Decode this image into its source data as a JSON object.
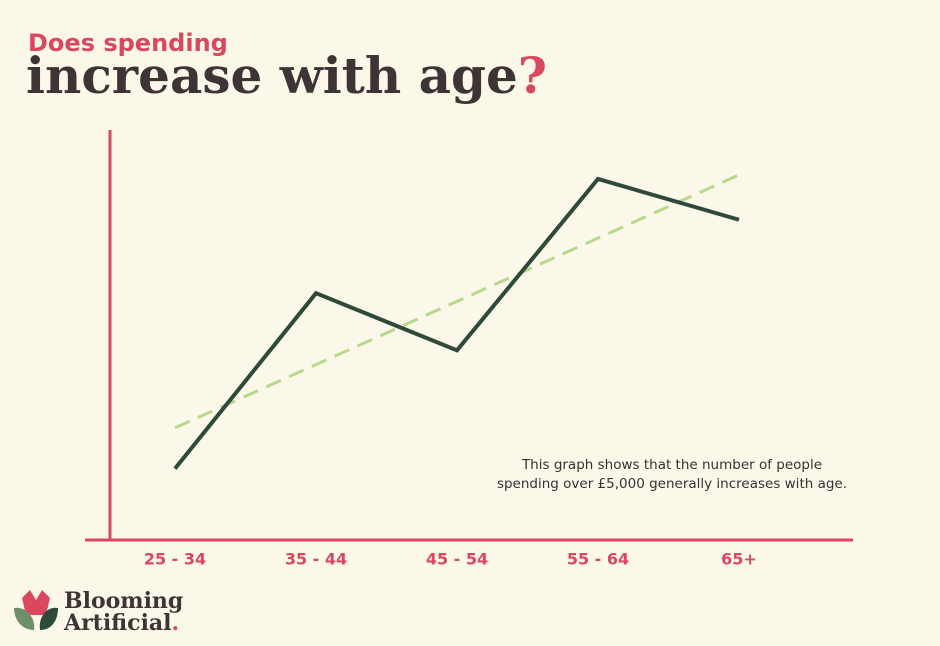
{
  "chart_data": {
    "type": "line",
    "title": "Does spending",
    "headline": [
      "increase with age",
      "?"
    ],
    "annotation": [
      "This graph shows that the number of people",
      "spending over £5,000 generally increases with age."
    ],
    "categories": [
      "25 - 34",
      "35 - 44",
      "45 - 54",
      "55 - 64",
      "65+"
    ],
    "series": [
      {
        "color": "#2f4a3b",
        "values": [
          17,
          60,
          46,
          88,
          78
        ]
      },
      {
        "color": "#b8d88e",
        "values": [
          27,
          42.5,
          58,
          73.5,
          89
        ],
        "dashed": true
      }
    ],
    "ylim": [
      0,
      100
    ],
    "axis_color": "#d9485f"
  },
  "brand": [
    "Blooming",
    "Artificial",
    "."
  ]
}
